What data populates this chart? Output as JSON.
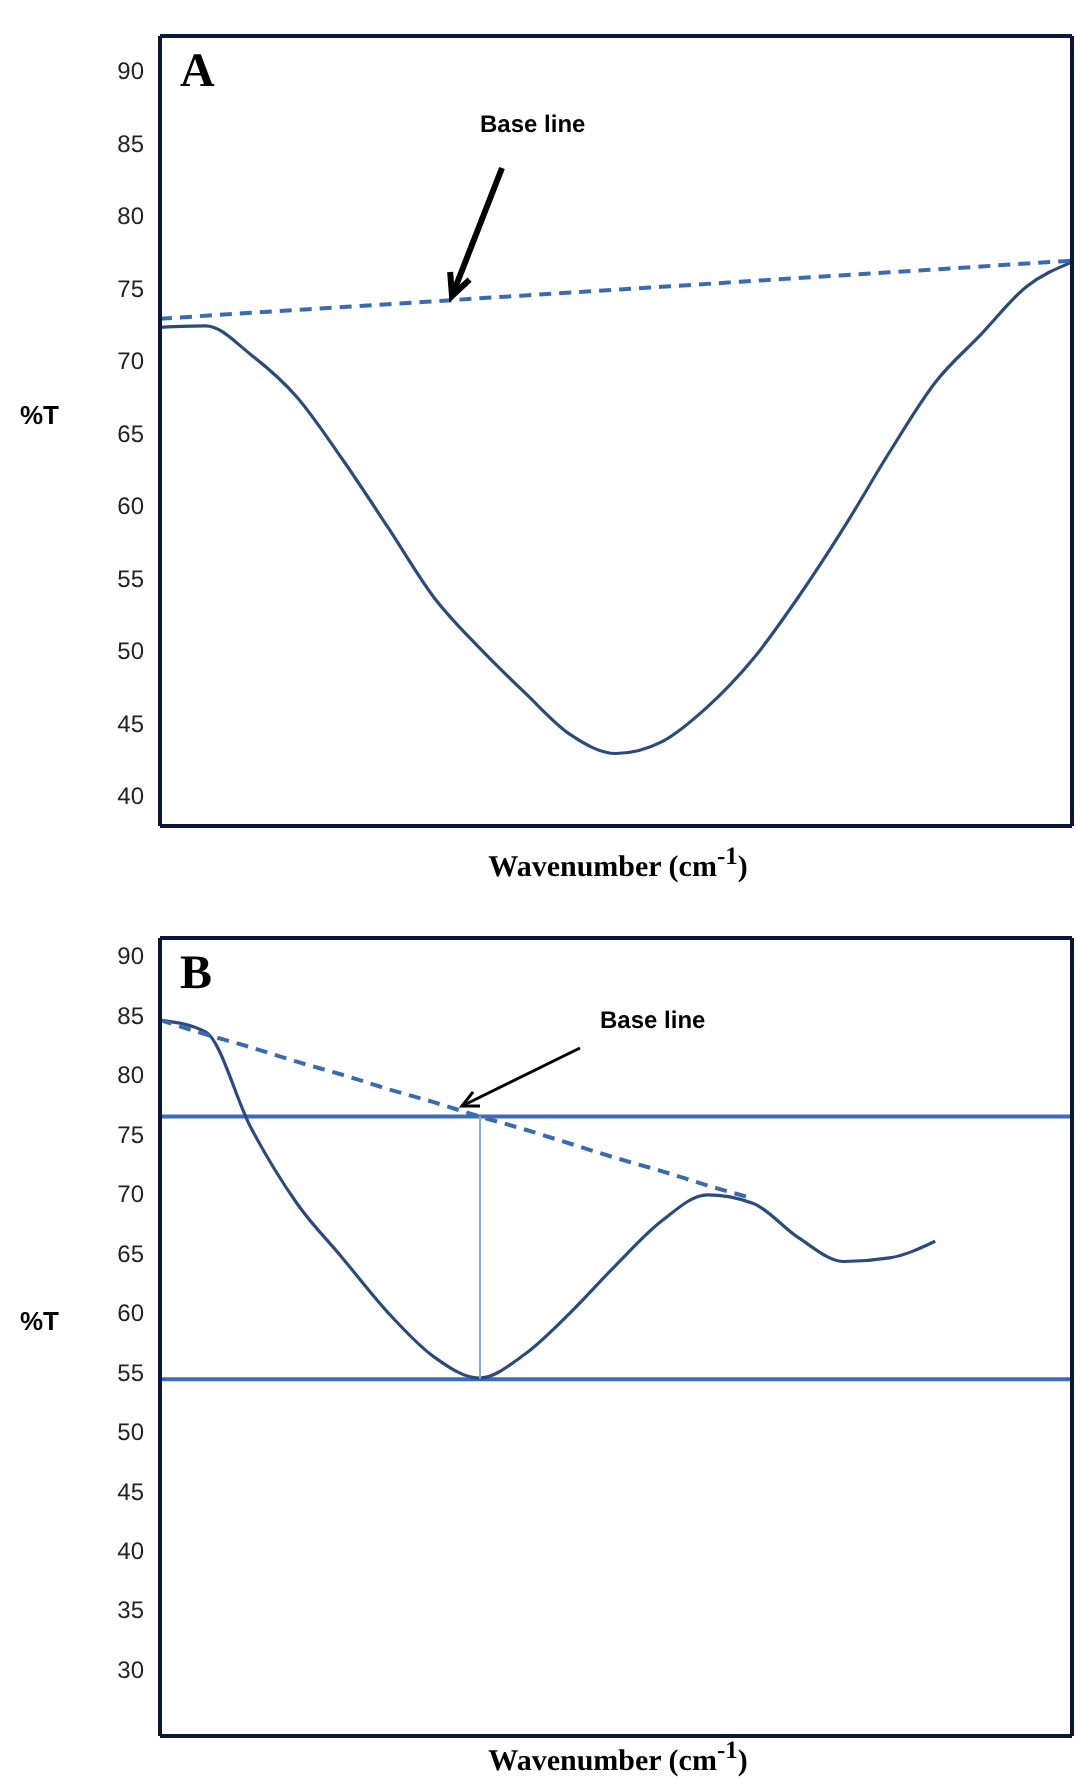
{
  "chart_data": [
    {
      "type": "line",
      "title": "A",
      "xlabel": "Wavenumber (cm$^{-1}$)",
      "ylabel": "%T",
      "categories": [
        null,
        null,
        null,
        null,
        null,
        null,
        null,
        null,
        null,
        null,
        null,
        null,
        null,
        null,
        null,
        null,
        null,
        null,
        null,
        null,
        null
      ],
      "series": [
        {
          "color": "#2c4a7c",
          "line_style": "solid",
          "values": [
            72.3,
            72.4,
            70.4,
            67.5,
            63.2,
            58.5,
            53.7,
            50.2,
            47.1,
            44.2,
            42.9,
            43.7,
            46.1,
            49.4,
            53.7,
            58.5,
            63.7,
            68.5,
            71.8,
            75.1,
            76.8
          ]
        },
        {
          "color": "#3a6bb0",
          "line_style": "dashed",
          "values": [
            72.9,
            73.1,
            73.3,
            73.5,
            73.7,
            73.9,
            74.1,
            74.3,
            74.5,
            74.7,
            74.9,
            75.1,
            75.3,
            75.5,
            75.7,
            75.9,
            76.1,
            76.3,
            76.5,
            76.7,
            76.9
          ]
        }
      ],
      "ylim": [
        37.9,
        92.4
      ],
      "yticks": [
        40,
        45,
        50,
        55,
        60,
        65,
        70,
        75,
        80,
        85,
        90
      ],
      "tick_labels": "y",
      "marker": "none",
      "annotations": [
        "Base line"
      ]
    },
    {
      "type": "line",
      "title": "B",
      "xlabel": "Wavenumber (cm$^{-1}$)",
      "ylabel": "%T",
      "categories": [
        null,
        null,
        null,
        null,
        null,
        null,
        null,
        null,
        null,
        null,
        null,
        null,
        null,
        null,
        null,
        null,
        null,
        null,
        null,
        null,
        null
      ],
      "series": [
        {
          "color": "#2c4a7c",
          "line_style": "solid",
          "values": [
            84.6,
            83.6,
            75.5,
            69.2,
            64.6,
            60.0,
            56.3,
            54.5,
            56.5,
            60.0,
            64.0,
            67.7,
            69.9,
            69.2,
            66.3,
            64.3,
            64.6,
            66.0,
            null,
            null,
            null
          ]
        },
        {
          "color": "#3a6bb0",
          "line_style": "dashed",
          "values": [
            84.6,
            83.4,
            82.3,
            81.1,
            80.0,
            78.8,
            77.7,
            76.5,
            75.4,
            74.2,
            73.0,
            71.9,
            70.7,
            69.6,
            null,
            null,
            null,
            null,
            null,
            null,
            null
          ]
        }
      ],
      "ylim": [
        24.4,
        91.5
      ],
      "yticks": [
        30,
        35,
        40,
        45,
        50,
        55,
        60,
        65,
        70,
        75,
        80,
        85,
        90
      ],
      "tick_labels": "y",
      "marker": "none",
      "annotations": [
        "Base line"
      ],
      "ref_lines": [
        {
          "axis": "y",
          "value": 76.5,
          "color": "#3a6bc0"
        },
        {
          "axis": "y",
          "value": 54.4,
          "color": "#3a6bc0"
        }
      ]
    }
  ]
}
